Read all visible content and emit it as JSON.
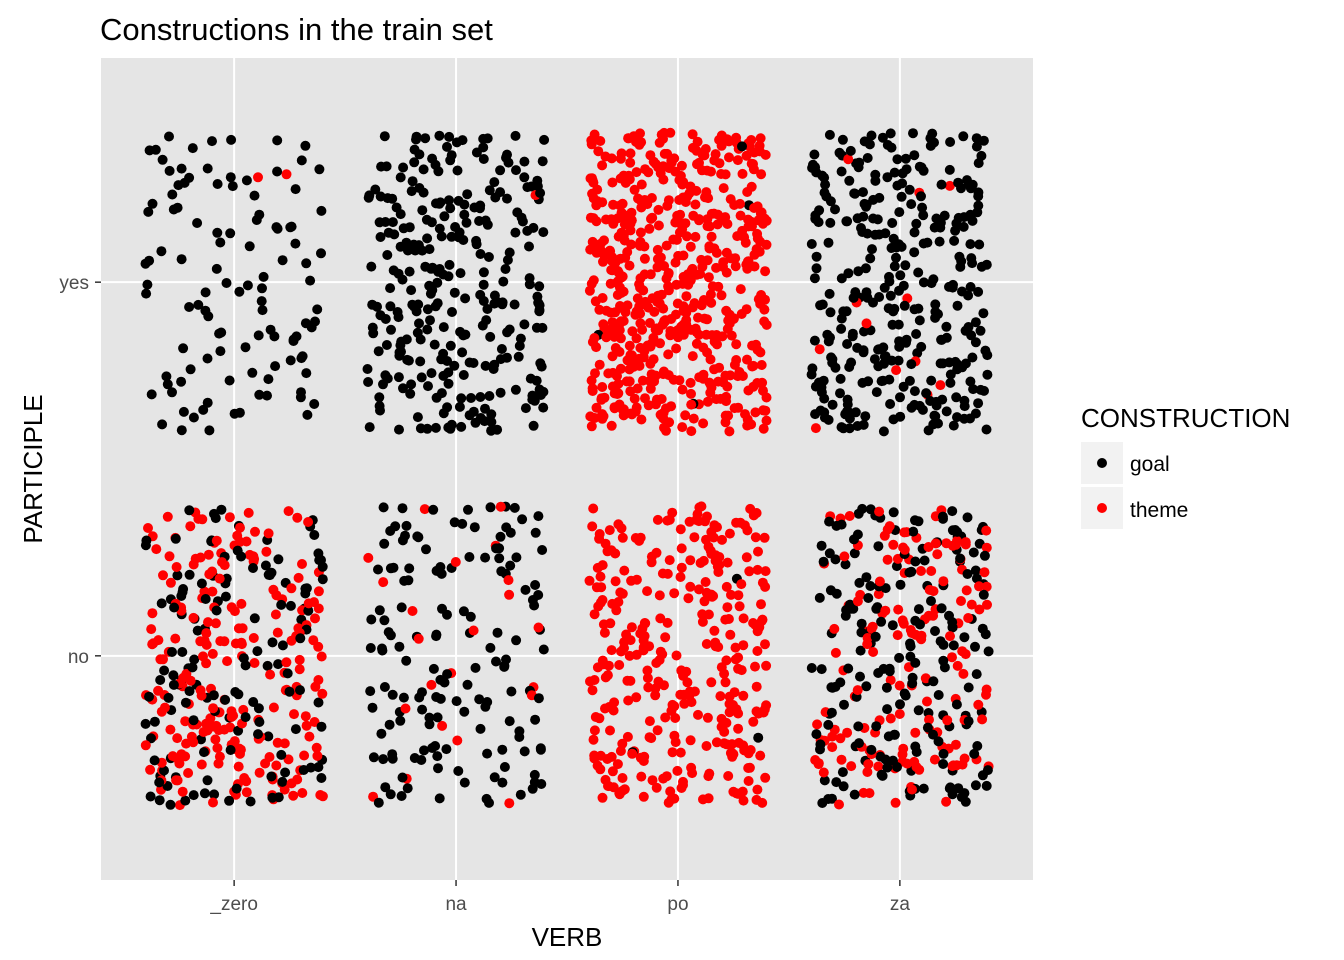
{
  "chart_data": {
    "type": "scatter",
    "title": "Constructions in the train set",
    "xlabel": "VERB",
    "ylabel": "PARTICIPLE",
    "x_categories": [
      "_zero",
      "na",
      "po",
      "za"
    ],
    "y_categories": [
      "no",
      "yes"
    ],
    "jitter": 0.4,
    "grid": true,
    "legend": {
      "title": "CONSTRUCTION",
      "position": "right",
      "entries": [
        {
          "name": "goal",
          "color": "#000000"
        },
        {
          "name": "theme",
          "color": "#ff0000"
        }
      ]
    },
    "colors": {
      "panel": "#e5e5e5",
      "grid": "#ffffff",
      "goal": "#000000",
      "theme": "#ff0000"
    },
    "series": [
      {
        "name": "goal",
        "color": "#000000"
      },
      {
        "name": "theme",
        "color": "#ff0000"
      }
    ],
    "counts": [
      {
        "verb": "_zero",
        "participle": "yes",
        "goal": 110,
        "theme": 2
      },
      {
        "verb": "na",
        "participle": "yes",
        "goal": 290,
        "theme": 1
      },
      {
        "verb": "po",
        "participle": "yes",
        "goal": 4,
        "theme": 590
      },
      {
        "verb": "za",
        "participle": "yes",
        "goal": 330,
        "theme": 12
      },
      {
        "verb": "_zero",
        "participle": "no",
        "goal": 140,
        "theme": 230
      },
      {
        "verb": "na",
        "participle": "no",
        "goal": 150,
        "theme": 22
      },
      {
        "verb": "po",
        "participle": "no",
        "goal": 3,
        "theme": 330
      },
      {
        "verb": "za",
        "participle": "no",
        "goal": 200,
        "theme": 160
      }
    ]
  }
}
